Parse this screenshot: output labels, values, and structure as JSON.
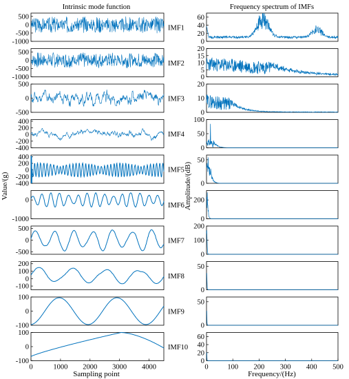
{
  "chart_data": [
    {
      "type": "line",
      "panel": "left",
      "title": "Intrinsic mode function",
      "xlabel": "Sampling point",
      "ylabel": "Value/(g)",
      "xlim": [
        0,
        4500
      ],
      "xticks": [
        "0",
        "1000",
        "2000",
        "3000",
        "4000"
      ],
      "series": [
        {
          "name": "IMF1",
          "ylim": [
            -1000,
            700
          ],
          "yticks": [
            {
              "v": 500,
              "label": "500"
            },
            {
              "v": 0,
              "label": "0"
            },
            {
              "v": -500,
              "label": "-500"
            },
            {
              "v": -1000,
              "label": "-1000"
            }
          ],
          "signal": {
            "kind": "noise",
            "amp": 520,
            "freq": 0.55,
            "envelope": "bursts",
            "bursts": 9,
            "seed": 3
          }
        },
        {
          "name": "IMF2",
          "ylim": [
            -1000,
            700
          ],
          "yticks": [
            {
              "v": 500,
              "label": "500"
            },
            {
              "v": 0,
              "label": "0"
            },
            {
              "v": -500,
              "label": "-500"
            },
            {
              "v": -1000,
              "label": "-1000"
            }
          ],
          "signal": {
            "kind": "noise",
            "amp": 480,
            "freq": 0.35,
            "envelope": "bursts",
            "bursts": 9,
            "seed": 7
          }
        },
        {
          "name": "IMF3",
          "ylim": [
            -500,
            500
          ],
          "yticks": [
            {
              "v": 500,
              "label": "500"
            },
            {
              "v": 0,
              "label": "0"
            },
            {
              "v": -500,
              "label": "-500"
            }
          ],
          "signal": {
            "kind": "noise",
            "amp": 300,
            "freq": 0.18,
            "envelope": "mild",
            "seed": 11
          }
        },
        {
          "name": "IMF4",
          "ylim": [
            -400,
            450
          ],
          "yticks": [
            {
              "v": 400,
              "label": "400"
            },
            {
              "v": 200,
              "label": "200"
            },
            {
              "v": 0,
              "label": "0"
            },
            {
              "v": -200,
              "label": "-200"
            },
            {
              "v": -400,
              "label": "-400"
            }
          ],
          "signal": {
            "kind": "noise",
            "amp": 240,
            "freq": 0.08,
            "envelope": "mild",
            "seed": 5
          }
        },
        {
          "name": "IMF5",
          "ylim": [
            -400,
            450
          ],
          "yticks": [
            {
              "v": 400,
              "label": "400"
            },
            {
              "v": 200,
              "label": "200"
            },
            {
              "v": 0,
              "label": "0"
            },
            {
              "v": -200,
              "label": "-200"
            },
            {
              "v": -400,
              "label": "-400"
            }
          ],
          "signal": {
            "kind": "wave",
            "amp": 210,
            "cycles": 42,
            "start_spike": 420,
            "seed": 9
          }
        },
        {
          "name": "IMF6",
          "ylim": [
            -1000,
            500
          ],
          "yticks": [
            {
              "v": 0,
              "label": "0"
            },
            {
              "v": -1000,
              "label": "-1000"
            }
          ],
          "signal": {
            "kind": "wave",
            "amp": 380,
            "cycles": 15,
            "seed": 13
          }
        },
        {
          "name": "IMF7",
          "ylim": [
            -600,
            600
          ],
          "yticks": [
            {
              "v": 500,
              "label": "500"
            },
            {
              "v": 0,
              "label": "0"
            },
            {
              "v": -500,
              "label": "-500"
            }
          ],
          "signal": {
            "kind": "wave",
            "amp": 460,
            "cycles": 7,
            "seed": 17
          }
        },
        {
          "name": "IMF8",
          "ylim": [
            -150,
            230
          ],
          "yticks": [
            {
              "v": 200,
              "label": "200"
            },
            {
              "v": 100,
              "label": "100"
            },
            {
              "v": 0,
              "label": "0"
            },
            {
              "v": -100,
              "label": "-100"
            }
          ],
          "signal": {
            "kind": "wave",
            "amp": 110,
            "cycles": 4,
            "offset": 40,
            "seed": 19
          }
        },
        {
          "name": "IMF9",
          "ylim": [
            -100,
            100
          ],
          "yticks": [
            {
              "v": 100,
              "label": "100"
            },
            {
              "v": 0,
              "label": "0"
            },
            {
              "v": -100,
              "label": "-100"
            }
          ],
          "signal": {
            "kind": "sine",
            "amp": 95,
            "cycles": 2.3,
            "phase": -1.5
          }
        },
        {
          "name": "IMF10",
          "ylim": [
            -100,
            100
          ],
          "yticks": [
            {
              "v": 100,
              "label": "100"
            },
            {
              "v": 0,
              "label": "0"
            },
            {
              "v": -100,
              "label": "-100"
            }
          ],
          "signal": {
            "kind": "trend",
            "start": -70,
            "peak": 100,
            "peak_x": 3050,
            "end": -10
          }
        }
      ]
    },
    {
      "type": "line",
      "panel": "right",
      "title": "Frequency spectrum of IMFs",
      "xlabel": "Frequency/(Hz)",
      "ylabel": "Amplitude/(dB)",
      "xlim": [
        0,
        500
      ],
      "xticks": [
        "0",
        "100",
        "200",
        "300",
        "400",
        "500"
      ],
      "series": [
        {
          "name": "IMF1",
          "ylim": [
            0,
            70
          ],
          "yticks": [
            {
              "v": 60,
              "label": "60"
            },
            {
              "v": 40,
              "label": "40"
            },
            {
              "v": 20,
              "label": "20"
            },
            {
              "v": 0,
              "label": "0"
            }
          ],
          "spectrum": {
            "base": 9,
            "noise": 6,
            "start": 30,
            "peaks": [
              [
                215,
                45,
                30
              ],
              [
                420,
                20,
                25
              ]
            ],
            "seed": 21
          }
        },
        {
          "name": "IMF2",
          "ylim": [
            0,
            20
          ],
          "yticks": [
            {
              "v": 20,
              "label": "20"
            },
            {
              "v": 15,
              "label": "15"
            },
            {
              "v": 10,
              "label": "10"
            },
            {
              "v": 5,
              "label": "5"
            },
            {
              "v": 0,
              "label": "0"
            }
          ],
          "spectrum": {
            "band": [
              20,
              240
            ],
            "level": 9,
            "noise": 6,
            "tail": 1.2,
            "seed": 23
          }
        },
        {
          "name": "IMF3",
          "ylim": [
            0,
            20
          ],
          "yticks": [
            {
              "v": 20,
              "label": "20"
            },
            {
              "v": 10,
              "label": "10"
            },
            {
              "v": 0,
              "label": "0"
            }
          ],
          "spectrum": {
            "band": [
              0,
              90
            ],
            "level": 8,
            "noise": 6,
            "tail": 0.4,
            "seed": 29
          }
        },
        {
          "name": "IMF4",
          "ylim": [
            0,
            100
          ],
          "yticks": [
            {
              "v": 100,
              "label": "100"
            },
            {
              "v": 50,
              "label": "50"
            },
            {
              "v": 0,
              "label": "0"
            }
          ],
          "spectrum": {
            "band": [
              0,
              28
            ],
            "level": 20,
            "noise": 15,
            "spike": [
              15,
              85
            ],
            "seed": 31
          }
        },
        {
          "name": "IMF5",
          "ylim": [
            0,
            60
          ],
          "yticks": [
            {
              "v": 50,
              "label": "50"
            },
            {
              "v": 0,
              "label": "0"
            }
          ],
          "spectrum": {
            "band": [
              0,
              15
            ],
            "level": 30,
            "noise": 18,
            "spike": [
              6,
              55
            ],
            "seed": 37
          }
        },
        {
          "name": "IMF6",
          "ylim": [
            0,
            300
          ],
          "yticks": [
            {
              "v": 200,
              "label": "200"
            },
            {
              "v": 0,
              "label": "0"
            }
          ],
          "spectrum": {
            "band": [
              0,
              5
            ],
            "level": 180,
            "noise": 80,
            "spike": [
              3,
              280
            ],
            "seed": 41
          }
        },
        {
          "name": "IMF7",
          "ylim": [
            0,
            200
          ],
          "yticks": [
            {
              "v": 200,
              "label": "200"
            },
            {
              "v": 100,
              "label": "100"
            },
            {
              "v": 0,
              "label": "0"
            }
          ],
          "spectrum": {
            "band": [
              0,
              2
            ],
            "level": 120,
            "noise": 40,
            "spike": [
              1,
              170
            ],
            "seed": 43
          }
        },
        {
          "name": "IMF8",
          "ylim": [
            0,
            60
          ],
          "yticks": [
            {
              "v": 50,
              "label": "50"
            },
            {
              "v": 0,
              "label": "0"
            }
          ],
          "spectrum": {
            "band": [
              0,
              1.2
            ],
            "level": 30,
            "noise": 10,
            "spike": [
              0.6,
              35
            ],
            "seed": 47
          }
        },
        {
          "name": "IMF9",
          "ylim": [
            0,
            60
          ],
          "yticks": [
            {
              "v": 50,
              "label": "50"
            },
            {
              "v": 0,
              "label": "0"
            }
          ],
          "spectrum": {
            "band": [
              0,
              0.8
            ],
            "level": 25,
            "noise": 8,
            "spike": [
              0.4,
              30
            ],
            "seed": 53
          }
        },
        {
          "name": "IMF10",
          "ylim": [
            0,
            70
          ],
          "yticks": [
            {
              "v": 60,
              "label": "60"
            },
            {
              "v": 40,
              "label": "40"
            },
            {
              "v": 20,
              "label": "20"
            },
            {
              "v": 0,
              "label": "0"
            }
          ],
          "spectrum": {
            "band": [
              0,
              0.5
            ],
            "level": 15,
            "noise": 5,
            "spike": [
              0.3,
              20
            ],
            "seed": 59
          }
        }
      ]
    }
  ],
  "style": {
    "line_color": "#0072bd",
    "axis_color": "#000000"
  }
}
